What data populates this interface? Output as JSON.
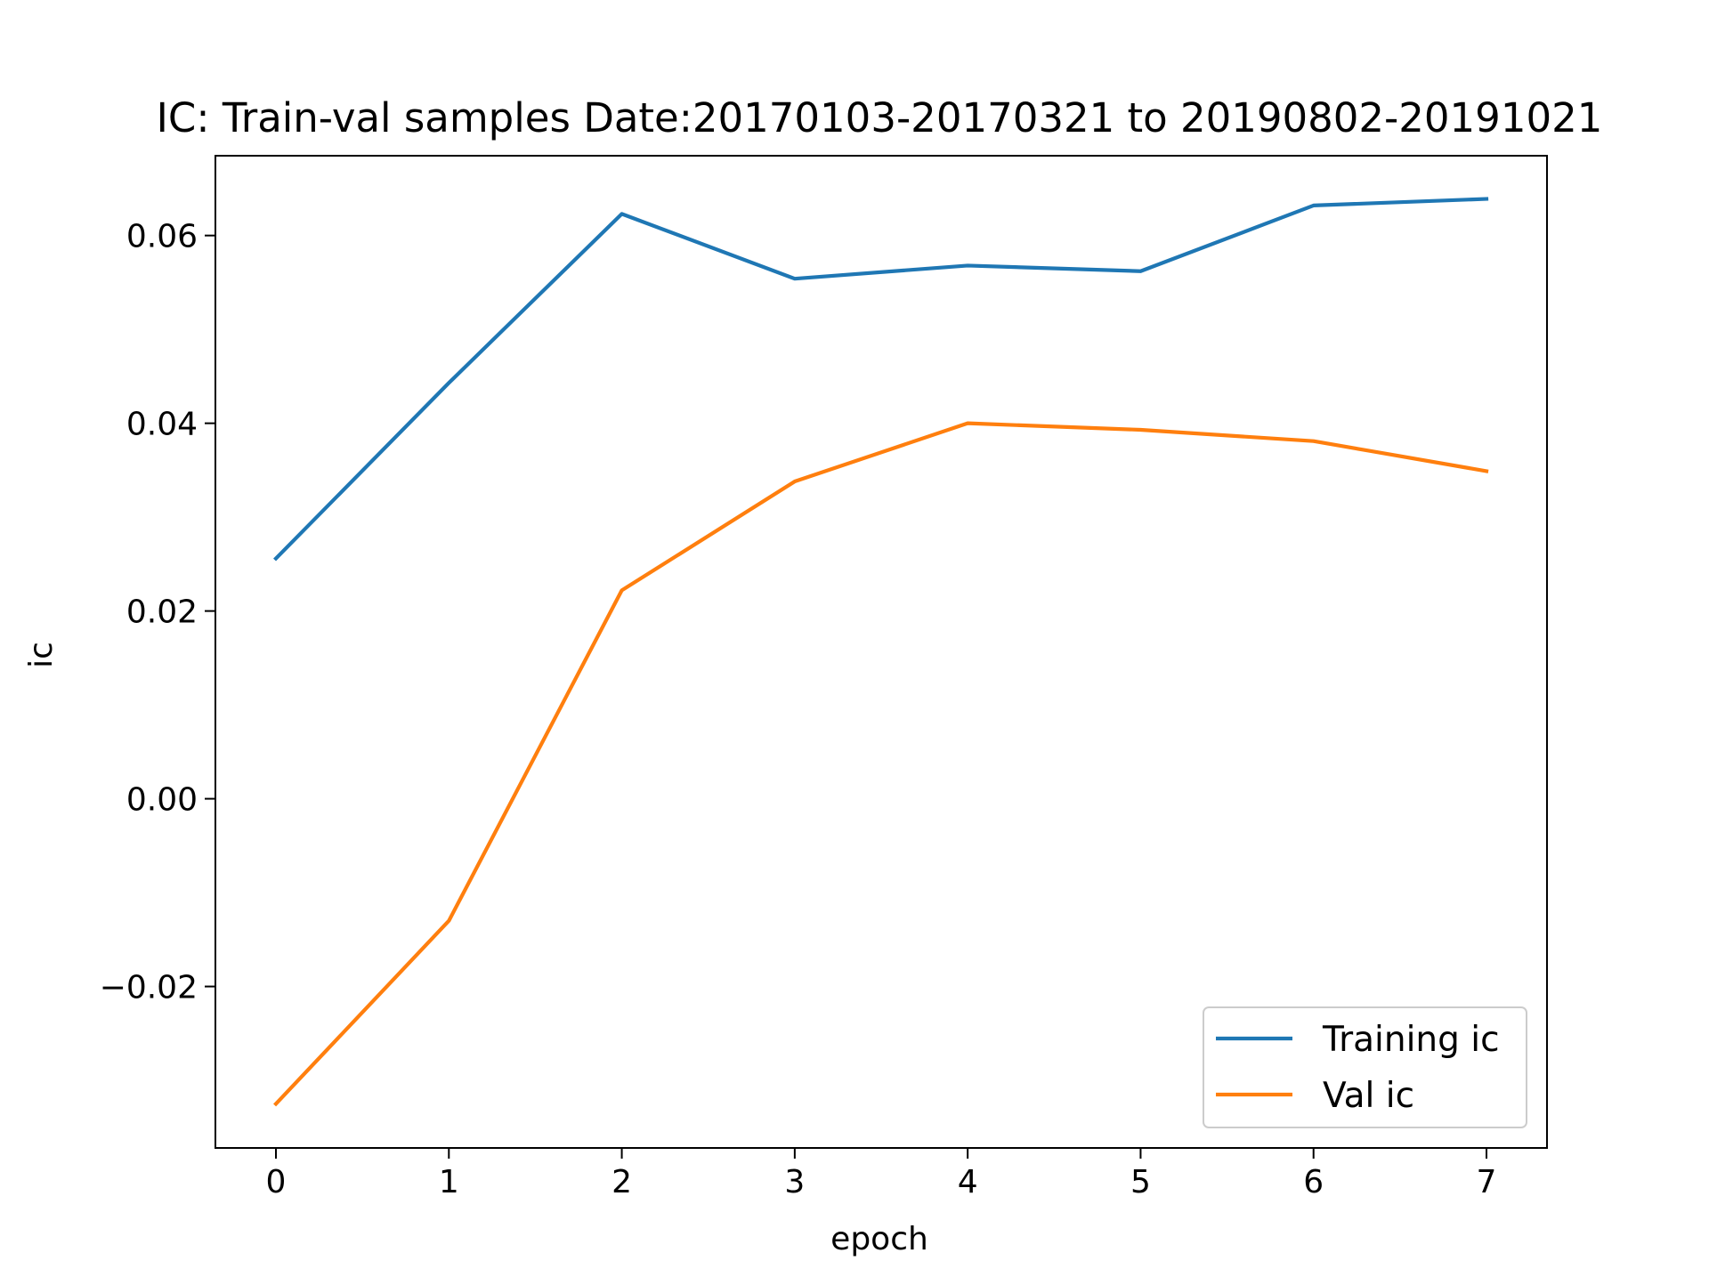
{
  "chart_data": {
    "type": "line",
    "title": "IC: Train-val samples Date:20170103-20170321 to 20190802-20191021",
    "xlabel": "epoch",
    "ylabel": "ic",
    "x": [
      0,
      1,
      2,
      3,
      4,
      5,
      6,
      7
    ],
    "xlim": [
      -0.35,
      7.35
    ],
    "ylim": [
      -0.0372,
      0.0685
    ],
    "xticks": [
      0,
      1,
      2,
      3,
      4,
      5,
      6,
      7
    ],
    "xtick_labels": [
      "0",
      "1",
      "2",
      "3",
      "4",
      "5",
      "6",
      "7"
    ],
    "yticks": [
      -0.02,
      0.0,
      0.02,
      0.04,
      0.06
    ],
    "ytick_labels": [
      "−0.02",
      "0.00",
      "0.02",
      "0.04",
      "0.06"
    ],
    "grid": false,
    "legend_position": "bottom-right",
    "series": [
      {
        "name": "Training ic",
        "color": "#1f77b4",
        "values": [
          0.0256,
          0.0443,
          0.0623,
          0.0554,
          0.0568,
          0.0562,
          0.0632,
          0.0639
        ]
      },
      {
        "name": "Val ic",
        "color": "#ff7f0e",
        "values": [
          -0.0325,
          -0.013,
          0.0222,
          0.0338,
          0.04,
          0.0393,
          0.0381,
          0.0349
        ]
      }
    ]
  }
}
